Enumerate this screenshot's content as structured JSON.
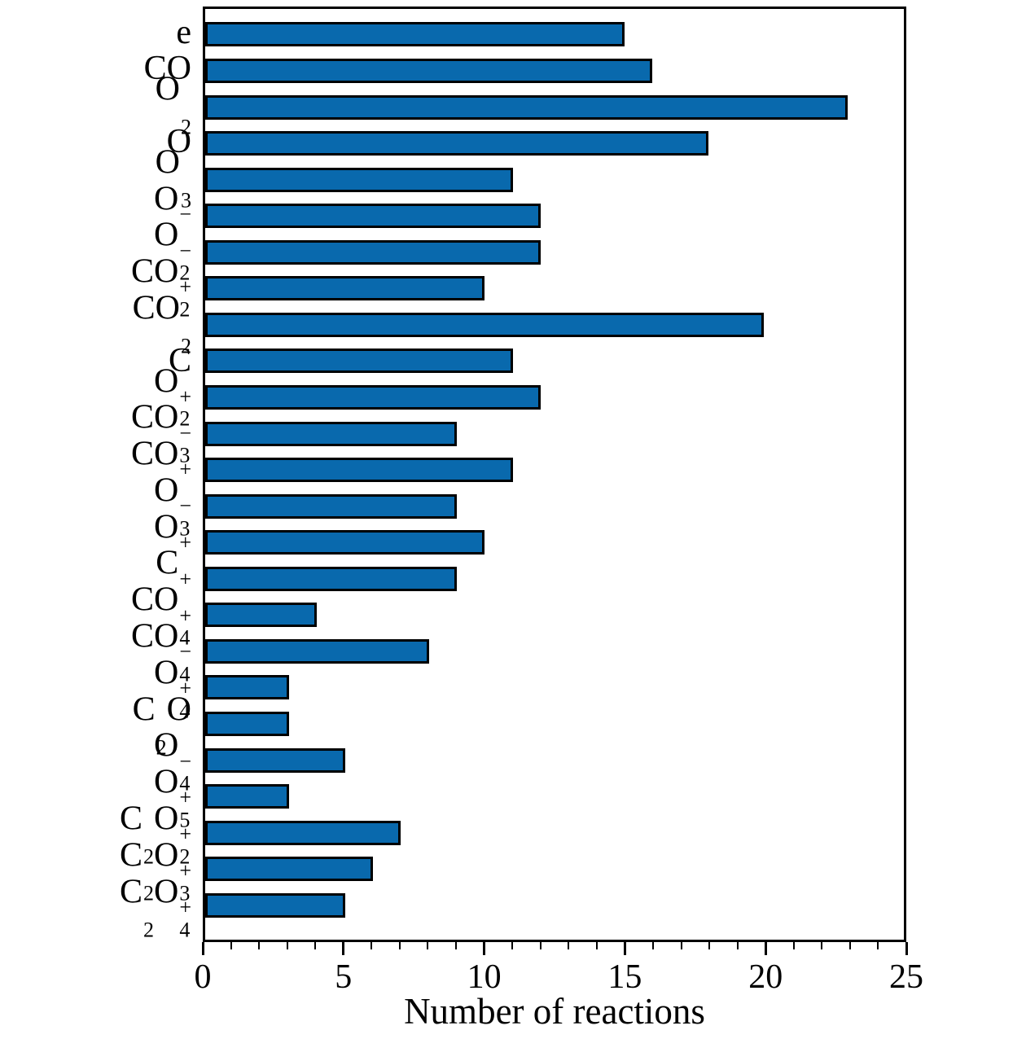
{
  "chart_data": {
    "type": "bar",
    "orientation": "horizontal",
    "title": "",
    "xlabel": "Number of reactions",
    "ylabel": "",
    "xlim": [
      0,
      25
    ],
    "x_major_ticks": [
      0,
      5,
      10,
      15,
      20,
      25
    ],
    "x_minor_tick_step": 1,
    "grid": false,
    "legend": false,
    "bar_color": "#0969ad",
    "bar_edge_color": "#000000",
    "categories": [
      "e",
      "CO",
      "O_2",
      "O",
      "O_3",
      "O^-",
      "O_2^-",
      "CO_2^+",
      "CO_2",
      "C",
      "O_2^+",
      "CO_3^-",
      "CO^+",
      "O_3^-",
      "O^+",
      "C^+",
      "CO_4^+",
      "CO_4^-",
      "O_4^+",
      "C_2O",
      "O_4^-",
      "O_5^+",
      "C_2O_2^+",
      "C_2O_3^+",
      "C_2O_4^+"
    ],
    "values": [
      15,
      16,
      23,
      18,
      11,
      12,
      12,
      10,
      20,
      11,
      12,
      9,
      11,
      9,
      10,
      9,
      4,
      8,
      3,
      3,
      5,
      3,
      7,
      6,
      5
    ]
  }
}
